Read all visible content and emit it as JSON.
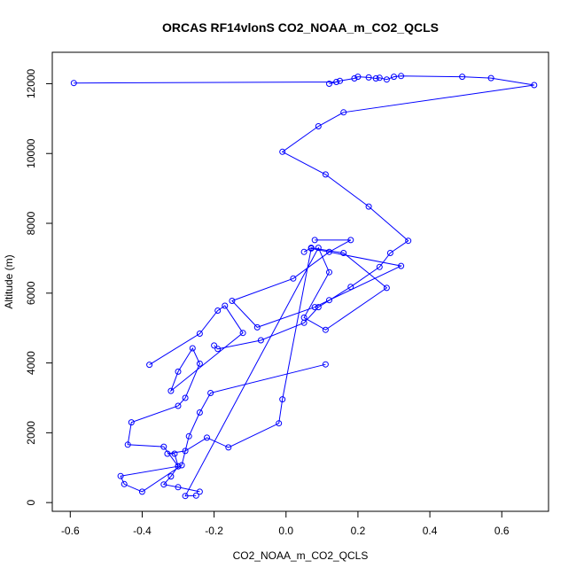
{
  "chart_data": {
    "type": "line",
    "title": "ORCAS RF14vlonS CO2_NOAA_m_CO2_QCLS",
    "xlabel": "CO2_NOAA_m_CO2_QCLS",
    "ylabel": "Altitude (m)",
    "xlim": [
      -0.65,
      0.73
    ],
    "ylim": [
      -250,
      12900
    ],
    "x_ticks": [
      -0.6,
      -0.4,
      -0.2,
      0.0,
      0.2,
      0.4,
      0.6
    ],
    "x_tick_labels": [
      "-0.6",
      "-0.4",
      "-0.2",
      "0.0",
      "0.2",
      "0.4",
      "0.6"
    ],
    "y_ticks": [
      0,
      2000,
      4000,
      6000,
      8000,
      10000,
      12000
    ],
    "y_tick_labels": [
      "0",
      "2000",
      "4000",
      "6000",
      "8000",
      "10000",
      "12000"
    ],
    "color": "#0000ff",
    "grid": false,
    "legend": "none",
    "series": [
      {
        "x": [
          -0.59,
          0.14,
          0.12,
          0.15,
          0.19,
          0.2,
          0.23,
          0.25,
          0.26,
          0.28,
          0.3,
          0.32,
          0.49,
          0.57,
          0.69,
          0.16,
          0.09,
          -0.01,
          0.11,
          0.23,
          0.34,
          0.29,
          0.26,
          0.18,
          0.09,
          0.05,
          -0.07,
          -0.19,
          -0.2
        ],
        "y": [
          12020,
          12050,
          12000,
          12080,
          12150,
          12200,
          12180,
          12150,
          12170,
          12120,
          12200,
          12220,
          12200,
          12160,
          11960,
          11180,
          10780,
          10050,
          9400,
          8480,
          7500,
          7150,
          6750,
          6180,
          5600,
          5150,
          4650,
          4400,
          4500
        ]
      },
      {
        "x": [
          0.08,
          0.18,
          0.12,
          0.02,
          -0.15,
          -0.08,
          0.08,
          0.12,
          0.32,
          0.07,
          -0.01,
          -0.02,
          -0.16,
          -0.22,
          -0.28,
          -0.33,
          -0.31,
          -0.3,
          -0.32,
          -0.34,
          -0.3,
          -0.24
        ],
        "y": [
          7520,
          7520,
          7180,
          6420,
          5780,
          5020,
          5600,
          5800,
          6780,
          7280,
          2960,
          2270,
          1580,
          1860,
          1480,
          1400,
          1400,
          1040,
          750,
          520,
          440,
          310
        ]
      },
      {
        "x": [
          0.11,
          -0.21,
          -0.24,
          -0.27,
          -0.29,
          -0.4,
          -0.45,
          -0.46,
          -0.3,
          -0.34,
          -0.44,
          -0.43,
          -0.3,
          -0.28,
          -0.24,
          -0.26,
          -0.3,
          -0.32,
          -0.12,
          -0.17,
          -0.19,
          -0.24,
          -0.38
        ],
        "y": [
          3960,
          3140,
          2580,
          1900,
          1070,
          310,
          530,
          760,
          1040,
          1600,
          1660,
          2300,
          2770,
          3000,
          3980,
          4420,
          3750,
          3200,
          4860,
          5640,
          5500,
          4840,
          3950
        ]
      },
      {
        "x": [
          0.05,
          0.07,
          0.16,
          0.28,
          0.11,
          0.05,
          0.12,
          0.09,
          -0.28,
          -0.25
        ],
        "y": [
          7180,
          7300,
          7150,
          6150,
          4950,
          5300,
          6600,
          7300,
          190,
          200
        ]
      }
    ]
  }
}
